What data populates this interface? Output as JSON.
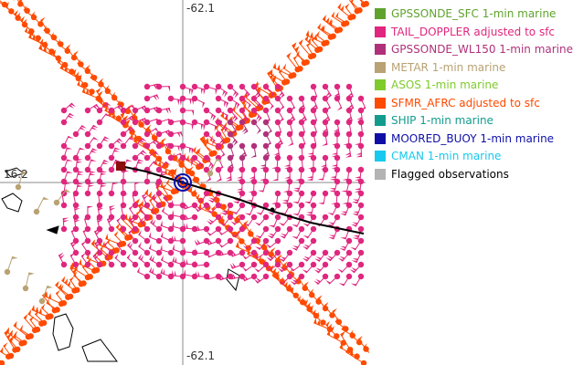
{
  "map": {
    "lon_label_top": "-62.1",
    "lon_label_bottom": "-62.1",
    "lat_label": "16.2"
  },
  "legend": {
    "items": [
      {
        "label": "GPSSONDE_SFC 1-min marine",
        "color": "#5fa32c"
      },
      {
        "label": "TAIL_DOPPLER adjusted to sfc",
        "color": "#e0267e"
      },
      {
        "label": "GPSSONDE_WL150 1-min marine",
        "color": "#b0307a"
      },
      {
        "label": "METAR 1-min marine",
        "color": "#b9a273"
      },
      {
        "label": "ASOS 1-min marine",
        "color": "#7fcb2b"
      },
      {
        "label": "SFMR_AFRC adjusted to sfc",
        "color": "#ff4a00"
      },
      {
        "label": "SHIP 1-min marine",
        "color": "#139c8e"
      },
      {
        "label": "MOORED_BUOY 1-min marine",
        "color": "#0f0fa8"
      },
      {
        "label": "CMAN 1-min marine",
        "color": "#17c9ee"
      },
      {
        "label": "Flagged observations",
        "color": "#b3b3b3"
      }
    ]
  },
  "colors": {
    "sfmr": "#ff4a00",
    "doppler": "#e0267e",
    "wl150": "#b0307a",
    "metar": "#b9a273",
    "center": "#0f0fa8",
    "track": "#000000",
    "grid": "#888888"
  }
}
